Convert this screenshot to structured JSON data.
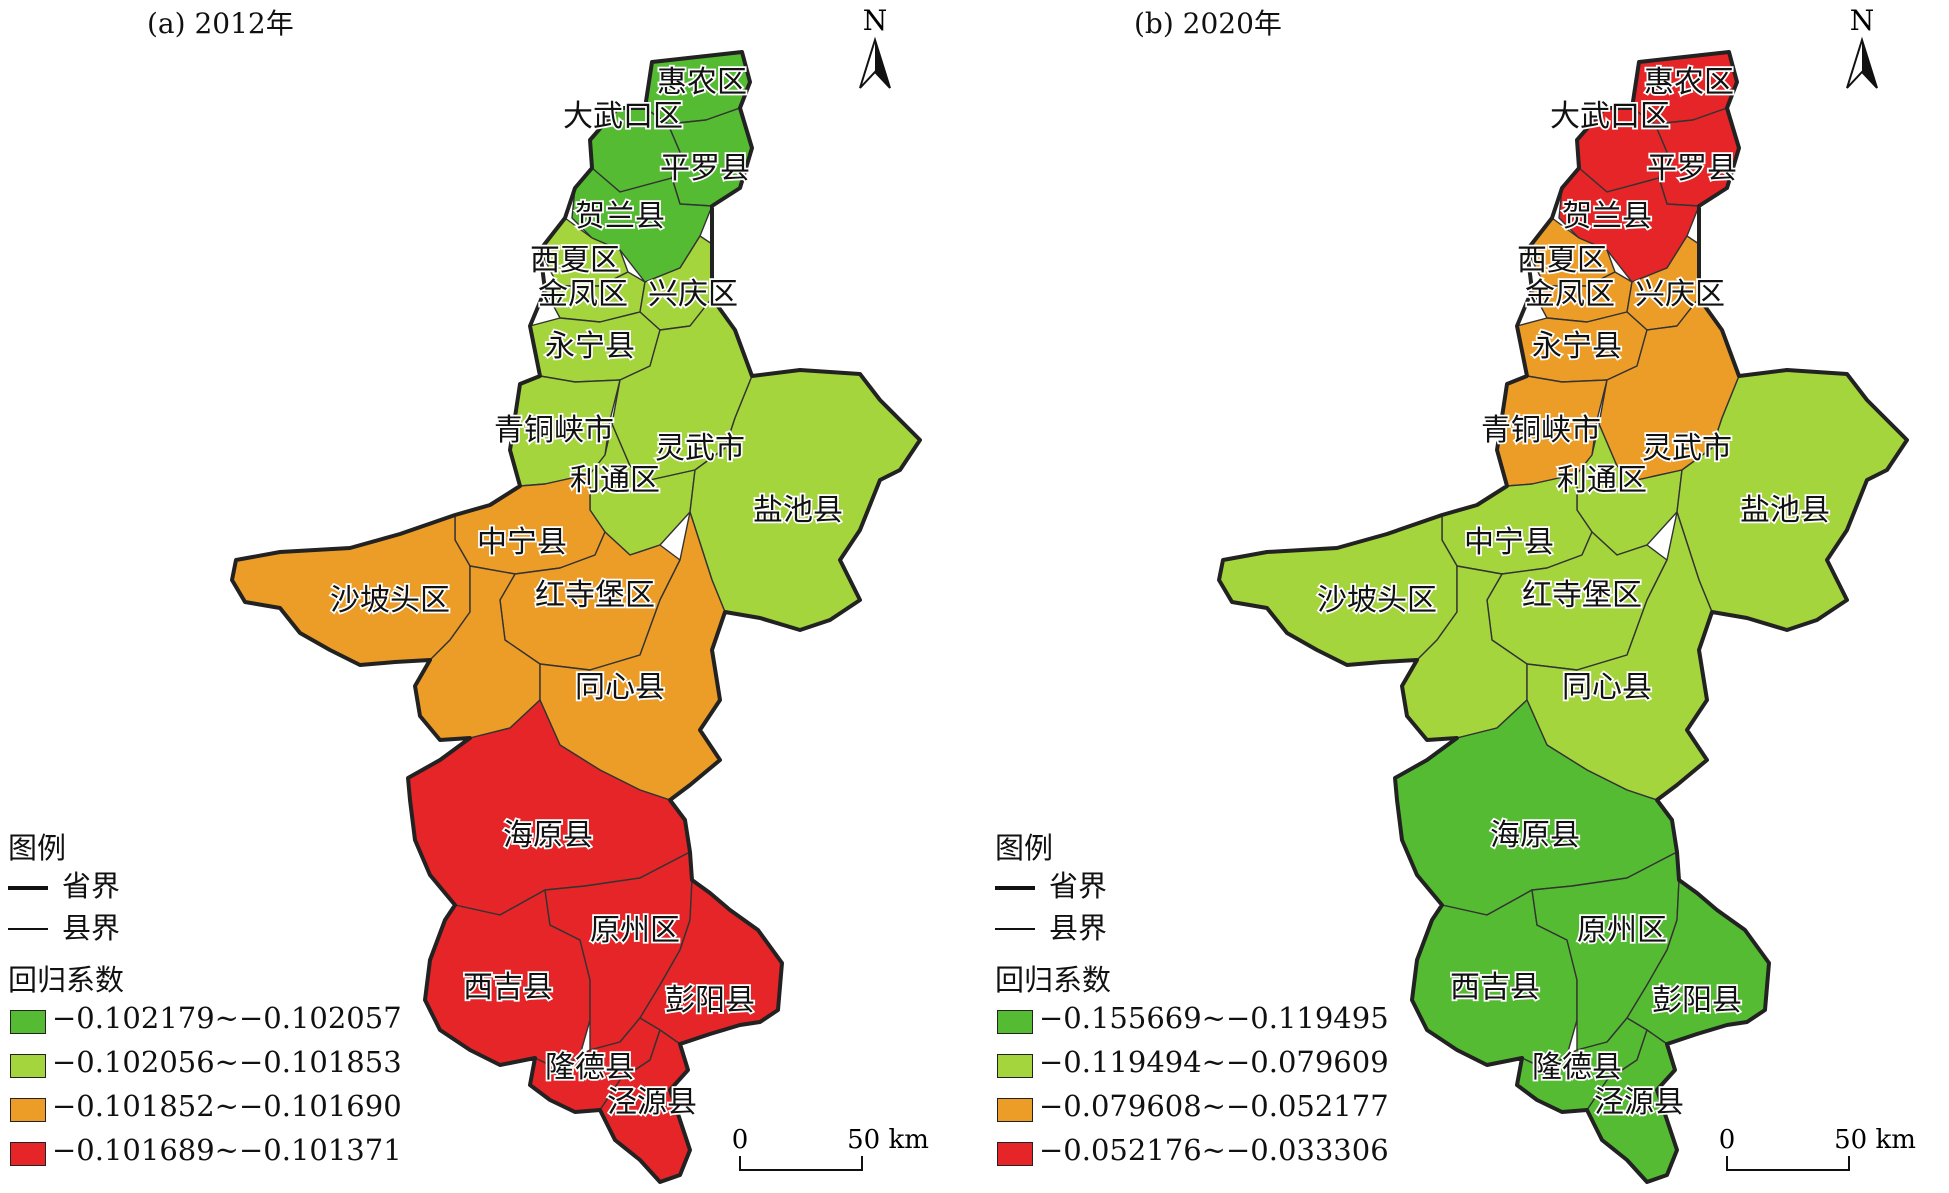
{
  "legend_common": {
    "title": "图例",
    "province_line": "省界",
    "county_line": "县界",
    "coef_title": "回归系数"
  },
  "panels": [
    {
      "title": "(a) 2012年",
      "north": "N",
      "scale": {
        "zero": "0",
        "end": "50 km"
      },
      "classes": [
        {
          "range": "−0.102179~−0.102057",
          "color": "#55bb33"
        },
        {
          "range": "−0.102056~−0.101853",
          "color": "#a4d53d"
        },
        {
          "range": "−0.101852~−0.101690",
          "color": "#ec9d27"
        },
        {
          "range": "−0.101689~−0.101371",
          "color": "#e52527"
        }
      ],
      "region_class": {
        "r-huinong": 0,
        "r-dawukou": 0,
        "r-pingluo": 0,
        "r-helan": 0,
        "r-xixia": 1,
        "r-jinfeng": 1,
        "r-xingqing": 1,
        "r-yongning": 1,
        "r-qingtongxia": 1,
        "r-lingwu": 1,
        "r-litong": 1,
        "r-yanchi": 1,
        "r-zhongning": 2,
        "r-shapotou": 2,
        "r-hongsibao": 2,
        "r-tongxin": 2,
        "r-sw-unlabeled": 2,
        "r-haiyuan": 3,
        "r-yuanzhou": 3,
        "r-xiji": 3,
        "r-pengyang": 3,
        "r-longde": 3,
        "r-jingyuan": 3
      }
    },
    {
      "title": "(b) 2020年",
      "north": "N",
      "scale": {
        "zero": "0",
        "end": "50 km"
      },
      "classes": [
        {
          "range": "−0.155669~−0.119495",
          "color": "#55bb33"
        },
        {
          "range": "−0.119494~−0.079609",
          "color": "#a4d53d"
        },
        {
          "range": "−0.079608~−0.052177",
          "color": "#ec9d27"
        },
        {
          "range": "−0.052176~−0.033306",
          "color": "#e52527"
        }
      ],
      "region_class": {
        "r-huinong": 3,
        "r-dawukou": 3,
        "r-pingluo": 3,
        "r-helan": 3,
        "r-xixia": 2,
        "r-jinfeng": 2,
        "r-xingqing": 2,
        "r-yongning": 2,
        "r-qingtongxia": 2,
        "r-lingwu": 2,
        "r-litong": 1,
        "r-yanchi": 1,
        "r-zhongning": 1,
        "r-shapotou": 1,
        "r-hongsibao": 1,
        "r-tongxin": 1,
        "r-sw-unlabeled": 1,
        "r-haiyuan": 0,
        "r-yuanzhou": 0,
        "r-xiji": 0,
        "r-pengyang": 0,
        "r-longde": 0,
        "r-jingyuan": 0
      }
    }
  ],
  "county_labels": {
    "r-huinong": "惠农区",
    "r-dawukou": "大武口区",
    "r-pingluo": "平罗县",
    "r-helan": "贺兰县",
    "r-xixia": "西夏区",
    "r-jinfeng": "金凤区",
    "r-xingqing": "兴庆区",
    "r-yongning": "永宁县",
    "r-qingtongxia": "青铜峡市",
    "r-lingwu": "灵武市",
    "r-litong": "利通区",
    "r-yanchi": "盐池县",
    "r-zhongning": "中宁县",
    "r-shapotou": "沙坡头区",
    "r-hongsibao": "红寺堡区",
    "r-tongxin": "同心县",
    "r-haiyuan": "海原县",
    "r-yuanzhou": "原州区",
    "r-xiji": "西吉县",
    "r-pengyang": "彭阳县",
    "r-longde": "隆德县",
    "r-jingyuan": "泾源县"
  }
}
